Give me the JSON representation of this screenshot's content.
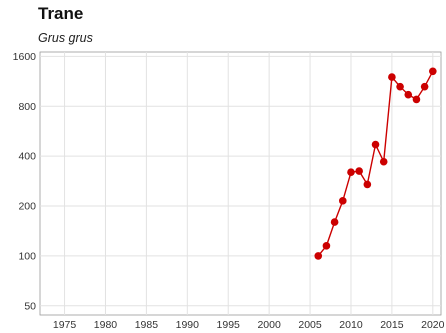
{
  "chart_data": {
    "type": "line",
    "title": "Trane",
    "subtitle": "Grus grus",
    "xlabel": "",
    "ylabel": "",
    "y_scale": "log",
    "grid": true,
    "xlim": [
      1972,
      2021
    ],
    "ylim": [
      44,
      1700
    ],
    "x_ticks": [
      1975,
      1980,
      1985,
      1990,
      1995,
      2000,
      2005,
      2010,
      2015,
      2020
    ],
    "y_ticks": [
      50,
      100,
      200,
      400,
      800,
      1600
    ],
    "series": [
      {
        "color": "#cc0000",
        "x": [
          2006,
          2007,
          2008,
          2009,
          2010,
          2011,
          2012,
          2013,
          2014,
          2015,
          2016,
          2017,
          2018,
          2019,
          2020
        ],
        "y": [
          100,
          115,
          160,
          215,
          320,
          325,
          270,
          470,
          370,
          1200,
          1050,
          940,
          880,
          1050,
          1300
        ]
      }
    ]
  }
}
